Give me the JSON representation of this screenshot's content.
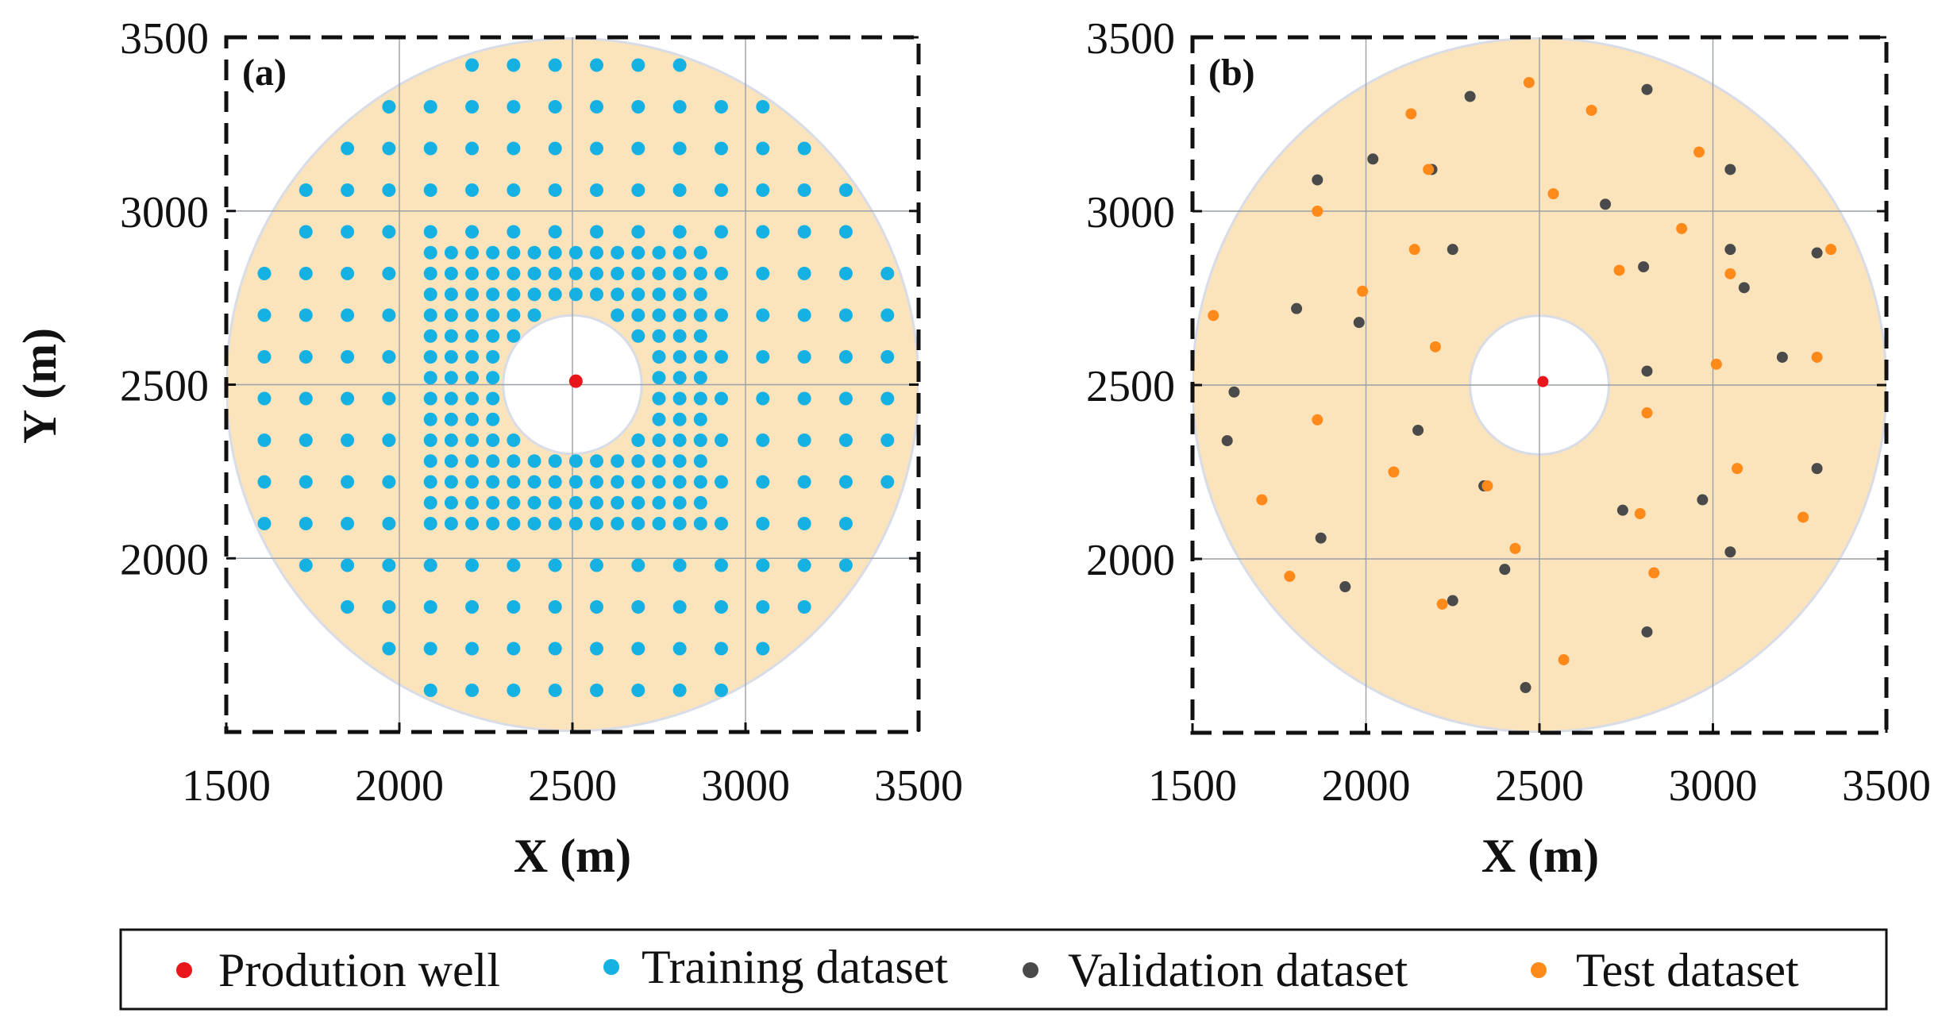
{
  "colors": {
    "annulus": "#FBE3BC",
    "annulus_edge": "#D8DCE6",
    "well": "#E8161B",
    "training": "#16B1E3",
    "validation": "#4A4A4A",
    "test": "#FF8A1A",
    "grid": "#9AA0A6"
  },
  "legend": {
    "items": [
      {
        "label": "Prodution well",
        "color_key": "well"
      },
      {
        "label": "Training dataset",
        "color_key": "training"
      },
      {
        "label": "Validation dataset",
        "color_key": "validation"
      },
      {
        "label": "Test dataset",
        "color_key": "test"
      }
    ]
  },
  "chart_data": [
    {
      "type": "scatter",
      "panel_label": "(a)",
      "xlabel": "X (m)",
      "ylabel": "Y (m)",
      "xlim": [
        1500,
        3500
      ],
      "ylim": [
        1500,
        3500
      ],
      "xticks": [
        "1500",
        "2000",
        "2500",
        "3000",
        "3500"
      ],
      "yticks": [
        "2000",
        "2500",
        "3000",
        "3500"
      ],
      "grid": true,
      "domain": {
        "center": [
          2500,
          2500
        ],
        "inner_radius": 200,
        "outer_radius": 1000
      },
      "series": [
        {
          "name": "Prodution well",
          "color_key": "well",
          "points": [
            [
              2510,
              2510
            ]
          ]
        },
        {
          "name": "Training dataset",
          "color_key": "training",
          "pattern": "regular_grid",
          "coarse_spacing": 120,
          "fine_spacing": 60,
          "fine_half_width": 420,
          "x_values": [
            1610,
            1730,
            1850,
            1970,
            2090,
            2210,
            2330,
            2450,
            2570,
            2690,
            2810,
            2930,
            3050,
            3170,
            3290,
            3410
          ],
          "y_values": [
            1620,
            1740,
            1860,
            1980,
            2100,
            2220,
            2340,
            2460,
            2580,
            2700,
            2820,
            2940,
            3060,
            3180,
            3300,
            3420
          ]
        }
      ]
    },
    {
      "type": "scatter",
      "panel_label": "(b)",
      "xlabel": "X (m)",
      "ylabel": "",
      "xlim": [
        1500,
        3500
      ],
      "ylim": [
        1500,
        3500
      ],
      "xticks": [
        "1500",
        "2000",
        "2500",
        "3000",
        "3500"
      ],
      "yticks": [
        "2000",
        "2500",
        "3000",
        "3500"
      ],
      "grid": true,
      "domain": {
        "center": [
          2500,
          2500
        ],
        "inner_radius": 200,
        "outer_radius": 1000
      },
      "series": [
        {
          "name": "Prodution well",
          "color_key": "well",
          "points": [
            [
              2510,
              2510
            ]
          ]
        },
        {
          "name": "Validation dataset",
          "color_key": "validation",
          "points": [
            [
              2810,
              3350
            ],
            [
              2300,
              3330
            ],
            [
              2020,
              3150
            ],
            [
              2190,
              3120
            ],
            [
              3050,
              3120
            ],
            [
              1860,
              3090
            ],
            [
              2690,
              3020
            ],
            [
              2250,
              2890
            ],
            [
              3050,
              2890
            ],
            [
              3300,
              2880
            ],
            [
              2800,
              2840
            ],
            [
              3090,
              2780
            ],
            [
              1800,
              2720
            ],
            [
              1980,
              2680
            ],
            [
              3200,
              2580
            ],
            [
              2810,
              2540
            ],
            [
              1620,
              2480
            ],
            [
              2150,
              2370
            ],
            [
              1600,
              2340
            ],
            [
              3300,
              2260
            ],
            [
              2340,
              2210
            ],
            [
              2970,
              2170
            ],
            [
              2740,
              2140
            ],
            [
              1870,
              2060
            ],
            [
              3050,
              2020
            ],
            [
              2400,
              1970
            ],
            [
              1940,
              1920
            ],
            [
              2250,
              1880
            ],
            [
              2810,
              1790
            ],
            [
              2460,
              1630
            ]
          ]
        },
        {
          "name": "Test dataset",
          "color_key": "test",
          "points": [
            [
              2470,
              3370
            ],
            [
              2650,
              3290
            ],
            [
              2130,
              3280
            ],
            [
              2960,
              3170
            ],
            [
              2180,
              3120
            ],
            [
              2540,
              3050
            ],
            [
              1860,
              3000
            ],
            [
              2910,
              2950
            ],
            [
              2140,
              2890
            ],
            [
              3340,
              2890
            ],
            [
              2730,
              2830
            ],
            [
              3050,
              2820
            ],
            [
              1990,
              2770
            ],
            [
              1560,
              2700
            ],
            [
              2200,
              2610
            ],
            [
              3010,
              2560
            ],
            [
              3300,
              2580
            ],
            [
              2810,
              2420
            ],
            [
              1860,
              2400
            ],
            [
              3070,
              2260
            ],
            [
              2080,
              2250
            ],
            [
              2350,
              2210
            ],
            [
              1700,
              2170
            ],
            [
              2790,
              2130
            ],
            [
              3260,
              2120
            ],
            [
              2430,
              2030
            ],
            [
              2830,
              1960
            ],
            [
              1780,
              1950
            ],
            [
              2220,
              1870
            ],
            [
              2570,
              1710
            ]
          ]
        }
      ]
    }
  ]
}
